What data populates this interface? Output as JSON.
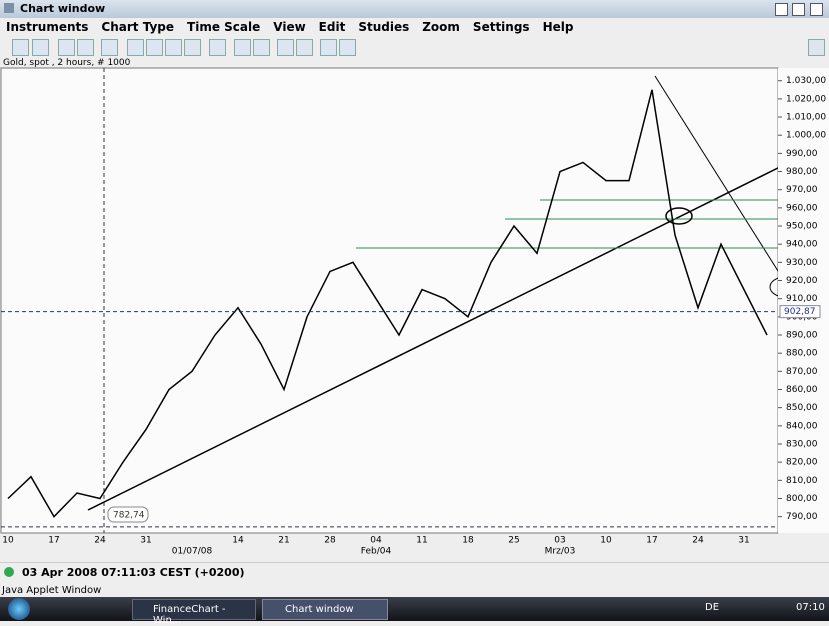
{
  "window": {
    "title": "Chart window"
  },
  "menu": [
    "Instruments",
    "Chart Type",
    "Time Scale",
    "View",
    "Edit",
    "Studies",
    "Zoom",
    "Settings",
    "Help"
  ],
  "chart_label": "Gold, spot , 2 hours, # 1000",
  "chart_data": {
    "type": "line",
    "color": "#000000",
    "categories": [
      "10",
      null,
      "17",
      null,
      "24",
      null,
      "31",
      null,
      null,
      null,
      "14",
      null,
      "21",
      null,
      "28",
      null,
      "04",
      null,
      "11",
      null,
      "18",
      null,
      "25",
      null,
      "03",
      null,
      "10",
      null,
      "17",
      null,
      "24",
      null,
      "31",
      null
    ],
    "period_labels": [
      null,
      null,
      null,
      null,
      null,
      null,
      null,
      null,
      "01/07/08",
      null,
      null,
      null,
      null,
      null,
      null,
      null,
      "Feb/04",
      null,
      null,
      null,
      null,
      null,
      null,
      null,
      "Mrz/03",
      null,
      null,
      null,
      null,
      null,
      null,
      null,
      null,
      null
    ],
    "values": [
      800,
      812,
      790,
      803,
      800,
      820,
      838,
      860,
      870,
      890,
      905,
      885,
      860,
      900,
      925,
      930,
      910,
      890,
      915,
      910,
      900,
      930,
      950,
      935,
      980,
      985,
      975,
      975,
      1025,
      945,
      905,
      940,
      915,
      890
    ],
    "ylim": [
      781,
      1037
    ],
    "yticks": [
      {
        "value": 790,
        "label": "790,00"
      },
      {
        "value": 800,
        "label": "800,00"
      },
      {
        "value": 810,
        "label": "810,00"
      },
      {
        "value": 820,
        "label": "820,00"
      },
      {
        "value": 830,
        "label": "830,00"
      },
      {
        "value": 840,
        "label": "840,00"
      },
      {
        "value": 850,
        "label": "850,00"
      },
      {
        "value": 860,
        "label": "860,00"
      },
      {
        "value": 870,
        "label": "870,00"
      },
      {
        "value": 880,
        "label": "880,00"
      },
      {
        "value": 890,
        "label": "890,00"
      },
      {
        "value": 900,
        "label": "900,00"
      },
      {
        "value": 910,
        "label": "910,00"
      },
      {
        "value": 920,
        "label": "920,00"
      },
      {
        "value": 930,
        "label": "930,00"
      },
      {
        "value": 940,
        "label": "940,00"
      },
      {
        "value": 950,
        "label": "950,00"
      },
      {
        "value": 960,
        "label": "960,00"
      },
      {
        "value": 970,
        "label": "970,00"
      },
      {
        "value": 980,
        "label": "980,00"
      },
      {
        "value": 990,
        "label": "990,00"
      },
      {
        "value": 1000,
        "label": "1.000,00"
      },
      {
        "value": 1010,
        "label": "1.010,00"
      },
      {
        "value": 1020,
        "label": "1.020,00"
      },
      {
        "value": 1030,
        "label": "1.030,00"
      }
    ],
    "last_price": {
      "value": 902.87,
      "label": "902,87"
    },
    "low_marker": {
      "value": 782.74,
      "label": "782,74"
    }
  },
  "status": "03 Apr 2008 07:11:03  CEST (+0200)",
  "applet_label": "Java Applet Window",
  "taskbar": {
    "items": [
      "FinanceChart - Win...",
      "Chart window"
    ],
    "language": "DE",
    "clock": "07:10"
  }
}
